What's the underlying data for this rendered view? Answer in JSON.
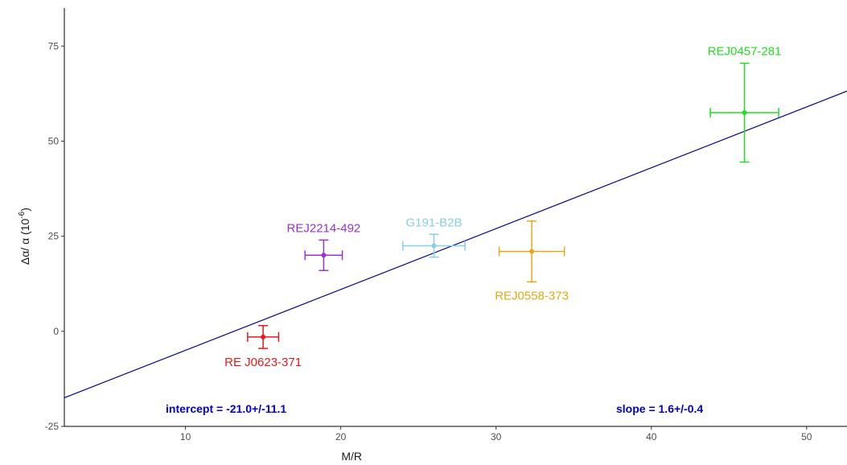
{
  "chart_data": {
    "type": "scatter",
    "xlabel": "M/R",
    "ylabel_main": "Δα/ α (10",
    "ylabel_exp": "-6",
    "ylabel_close": ")",
    "xlim": [
      2.2,
      52.6
    ],
    "ylim": [
      -25,
      85
    ],
    "xticks": [
      10,
      20,
      30,
      40,
      50
    ],
    "yticks": [
      -25,
      0,
      25,
      50,
      75
    ],
    "grid": false,
    "points": [
      {
        "label": "RE J0623-371",
        "x": 15.0,
        "y": -1.5,
        "xerr": 1.0,
        "yerr": 3.0,
        "color": "#e31a1c"
      },
      {
        "label": "REJ2214-492",
        "x": 18.9,
        "y": 20.0,
        "xerr": 1.2,
        "yerr": 4.0,
        "color": "#9932cc"
      },
      {
        "label": "G191-B2B",
        "x": 26.0,
        "y": 22.5,
        "xerr": 2.0,
        "yerr": 3.0,
        "color": "#87ceeb"
      },
      {
        "label": "REJ0558-373",
        "x": 32.3,
        "y": 21.0,
        "xerr": 2.1,
        "yerr": 8.0,
        "color": "#e6a817"
      },
      {
        "label": "REJ0457-281",
        "x": 46.0,
        "y": 57.5,
        "xerr": 2.2,
        "yerr": 13.0,
        "color": "#22dd22"
      }
    ],
    "fit_line": {
      "intercept": -21.0,
      "slope": 1.6,
      "color": "#00008b"
    },
    "annotations": {
      "intercept_text": "intercept = -21.0+/-11.1",
      "slope_text": "slope = 1.6+/-0.4",
      "color": "#0000cd"
    }
  }
}
